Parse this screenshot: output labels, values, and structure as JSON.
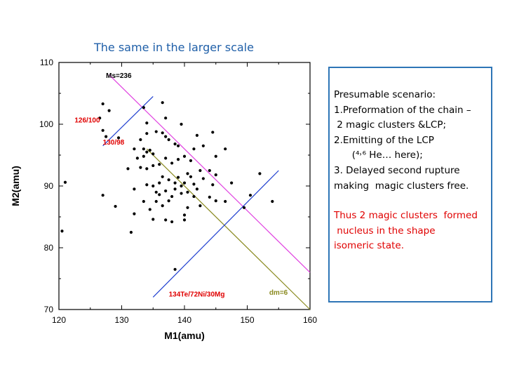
{
  "slide": {
    "title": "The same in the larger scale"
  },
  "scenario": {
    "heading": "Presumable scenario:",
    "lines": [
      "1.Preformation of the chain –",
      " 2 magic clusters &LCP;",
      "2.Emitting of the LCP",
      "      (⁴˒⁶ He… here);",
      "3. Delayed second rupture",
      "making  magic clusters free."
    ],
    "conclusion": [
      "Thus 2 magic clusters  formed",
      " nucleus in the shape",
      "isomeric state."
    ],
    "conclusion_color": "#e00000",
    "border_color": "#2e75b6"
  },
  "chart_data": {
    "type": "scatter",
    "title": "",
    "xlabel": "M1(amu)",
    "ylabel": "M2(amu)",
    "xlim": [
      120,
      160
    ],
    "ylim": [
      70,
      110
    ],
    "xticks": [
      120,
      130,
      140,
      150,
      160
    ],
    "yticks": [
      70,
      80,
      90,
      100,
      110
    ],
    "grid": false,
    "points": [
      [
        121,
        90.6
      ],
      [
        120.5,
        82.7
      ],
      [
        127,
        103.3
      ],
      [
        128,
        102.2
      ],
      [
        126.5,
        101
      ],
      [
        127,
        99
      ],
      [
        127.5,
        98
      ],
      [
        129.5,
        97.8
      ],
      [
        127,
        88.5
      ],
      [
        129,
        86.7
      ],
      [
        131,
        92.8
      ],
      [
        132,
        89.5
      ],
      [
        132,
        85.5
      ],
      [
        131.5,
        82.5
      ],
      [
        133.5,
        102.7
      ],
      [
        134,
        100.2
      ],
      [
        136.5,
        103.5
      ],
      [
        137,
        101
      ],
      [
        139.5,
        100
      ],
      [
        134,
        98.5
      ],
      [
        135.5,
        98.8
      ],
      [
        136.5,
        98.6
      ],
      [
        137,
        98
      ],
      [
        137.5,
        97.5
      ],
      [
        138.5,
        96.8
      ],
      [
        139,
        96.5
      ],
      [
        133,
        97.5
      ],
      [
        133.5,
        96
      ],
      [
        134,
        95.5
      ],
      [
        134.5,
        95.8
      ],
      [
        135,
        95.2
      ],
      [
        132,
        96
      ],
      [
        132.5,
        94.5
      ],
      [
        133.5,
        94.8
      ],
      [
        133,
        93
      ],
      [
        134,
        92.8
      ],
      [
        135,
        93.3
      ],
      [
        136,
        93.5
      ],
      [
        137,
        94.5
      ],
      [
        138,
        93.7
      ],
      [
        139,
        94.3
      ],
      [
        140,
        94.8
      ],
      [
        141,
        94.1
      ],
      [
        142,
        98.2
      ],
      [
        144.5,
        98.7
      ],
      [
        143,
        96.5
      ],
      [
        141.5,
        96
      ],
      [
        145,
        94.8
      ],
      [
        146.5,
        96
      ],
      [
        136,
        90.5
      ],
      [
        136.5,
        91.5
      ],
      [
        137.5,
        91
      ],
      [
        138.5,
        90.5
      ],
      [
        139,
        91.4
      ],
      [
        139.5,
        90
      ],
      [
        140,
        90.5
      ],
      [
        140.5,
        92
      ],
      [
        141,
        91.5
      ],
      [
        141.5,
        90.3
      ],
      [
        142.5,
        92.5
      ],
      [
        143,
        91.2
      ],
      [
        144,
        92.5
      ],
      [
        144.5,
        90.2
      ],
      [
        145,
        91.8
      ],
      [
        142,
        89.5
      ],
      [
        140.5,
        89
      ],
      [
        141.5,
        88.3
      ],
      [
        134,
        90.2
      ],
      [
        135,
        90
      ],
      [
        135.5,
        89
      ],
      [
        136,
        88.6
      ],
      [
        137,
        89.2
      ],
      [
        138,
        88.3
      ],
      [
        138.5,
        89.5
      ],
      [
        139.5,
        88.8
      ],
      [
        135.5,
        87.5
      ],
      [
        136.5,
        86.8
      ],
      [
        137.5,
        87.6
      ],
      [
        134.5,
        86.2
      ],
      [
        133.5,
        87.5
      ],
      [
        140.5,
        86.5
      ],
      [
        142.5,
        86.8
      ],
      [
        144,
        88.2
      ],
      [
        145,
        87.6
      ],
      [
        146.5,
        87.5
      ],
      [
        135,
        84.6
      ],
      [
        137,
        84.5
      ],
      [
        138,
        84.2
      ],
      [
        140,
        85.3
      ],
      [
        140,
        84.5
      ],
      [
        147.5,
        90.5
      ],
      [
        149.5,
        86.5
      ],
      [
        150.5,
        88.5
      ],
      [
        152,
        92
      ],
      [
        154,
        87.5
      ],
      [
        138.5,
        76.5
      ]
    ],
    "lines": [
      {
        "label": "Ms=236",
        "color": "#e040e0",
        "from": [
          128,
          108
        ],
        "to": [
          160,
          76
        ]
      },
      {
        "label": "dm=6",
        "color": "#8a8a20",
        "from": [
          134,
          96
        ],
        "to": [
          160,
          70
        ]
      },
      {
        "label": "126/100",
        "color": "#2040d0",
        "from": [
          127,
          96.5
        ],
        "to": [
          135,
          104.5
        ]
      },
      {
        "label": "134Te/72Ni/30Mg",
        "color": "#2040d0",
        "from": [
          135,
          72
        ],
        "to": [
          155,
          92.5
        ]
      }
    ],
    "annotations": [
      {
        "text": "Ms=236",
        "x": 127.5,
        "y": 107.5,
        "color": "#000000"
      },
      {
        "text": "126/100",
        "x": 122.5,
        "y": 100.3,
        "color": "#e00000"
      },
      {
        "text": "130/98",
        "x": 127,
        "y": 96.7,
        "color": "#e00000"
      },
      {
        "text": "134Te/72Ni/30Mg",
        "x": 137.5,
        "y": 72.1,
        "color": "#e00000"
      },
      {
        "text": "dm=6",
        "x": 153.5,
        "y": 72.4,
        "color": "#8a8a20"
      }
    ]
  }
}
